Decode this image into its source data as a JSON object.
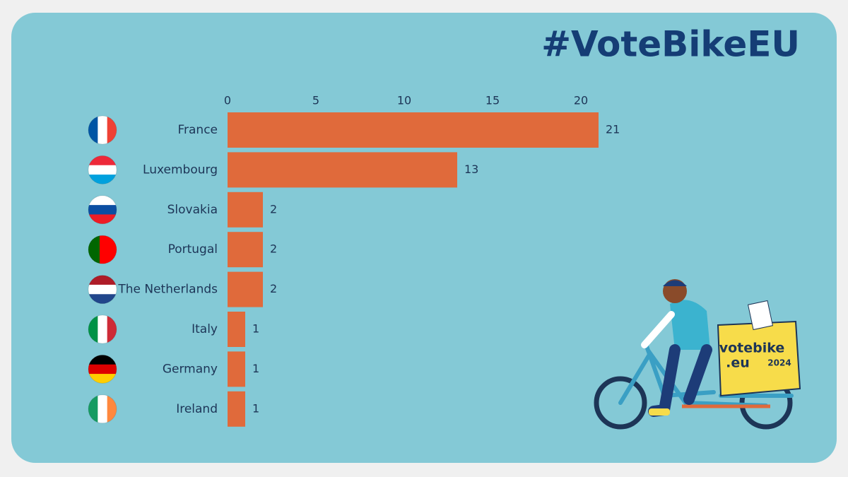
{
  "chart_data": {
    "type": "bar",
    "orientation": "horizontal",
    "title": "#VoteBikeEU",
    "categories": [
      "France",
      "Luxembourg",
      "Slovakia",
      "Portugal",
      "The Netherlands",
      "Italy",
      "Germany",
      "Ireland"
    ],
    "values": [
      21,
      13,
      2,
      2,
      2,
      1,
      1,
      1
    ],
    "color": "#e06a3b",
    "xlim": [
      0,
      21
    ],
    "xticks": [
      0,
      5,
      10,
      15,
      20
    ],
    "grid": false
  },
  "illustration": {
    "box_line1": "votebike",
    "box_line2": ".eu",
    "box_year": "2024"
  }
}
